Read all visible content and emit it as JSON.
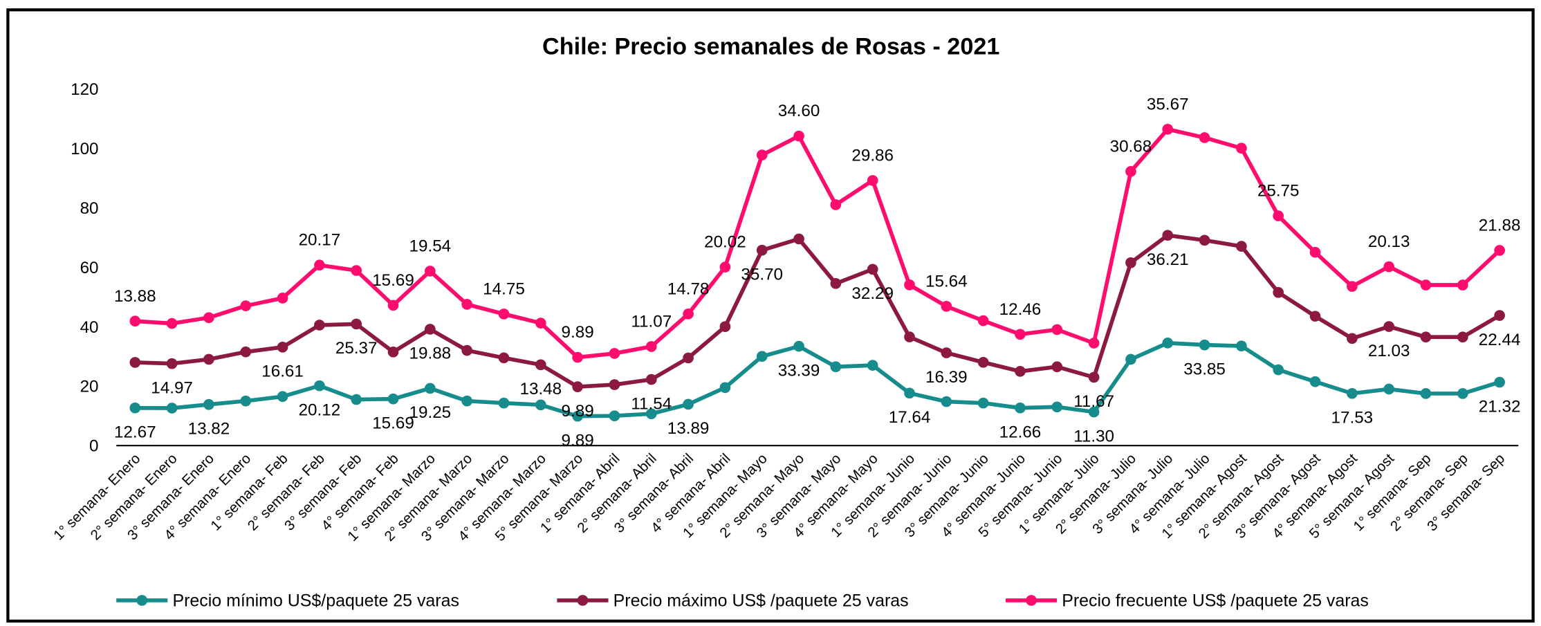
{
  "chart_data": {
    "type": "line",
    "stacked": true,
    "title": "Chile: Precio semanales de Rosas - 2021",
    "categories": [
      "1° semana- Enero",
      "2° semana- Enero",
      "3° semana- Enero",
      "4° semana- Enero",
      "1° semana- Feb",
      "2° semana- Feb",
      "3° semana- Feb",
      "4° semana- Feb",
      "1° semana- Marzo",
      "2° semana- Marzo",
      "3° semana- Marzo",
      "4° semana- Marzo",
      "5° semana- Marzo",
      "1° semana- Abril",
      "2° semana- Abril",
      "3° semana- Abril",
      "4° semana- Abril",
      "1° semana- Mayo",
      "2° semana- Mayo",
      "3° semana- Mayo",
      "4° semana- Mayo",
      "1° semana- Junio",
      "2° semana- Junio",
      "3° semana- Junio",
      "4° semana- Junio",
      "5° semana- Junio",
      "1° semana- Julio",
      "2° semana- Julio",
      "3° semana- Julio",
      "4° semana- Julio",
      "1° semana- Agost",
      "2° semana- Agost",
      "3° semana- Agost",
      "4° semana- Agost",
      "5° semana- Agost",
      "1° semana- Sep",
      "2° semana- Sep",
      "3° semana- Sep"
    ],
    "series": [
      {
        "name": "Precio mínimo US$/paquete 25 varas",
        "color": "#168c8c",
        "values": [
          12.67,
          12.6,
          13.82,
          15,
          16.5,
          20.12,
          15.5,
          15.69,
          19.25,
          15,
          14.3,
          13.7,
          9.89,
          10,
          10.7,
          13.89,
          19.5,
          30,
          33.39,
          26.5,
          27,
          17.64,
          14.8,
          14.3,
          12.66,
          13,
          11.3,
          29,
          34.5,
          33.85,
          33.5,
          25.5,
          21.5,
          17.53,
          19,
          17.5,
          17.5,
          21.32
        ],
        "value_labels": [
          "12.67",
          null,
          "13.82",
          null,
          null,
          "20.12",
          null,
          "15.69",
          "19.25",
          null,
          null,
          null,
          "9.89",
          null,
          null,
          "13.89",
          null,
          null,
          "33.39",
          null,
          null,
          "17.64",
          null,
          null,
          "12.66",
          null,
          "11.30",
          null,
          null,
          "33.85",
          null,
          null,
          null,
          "17.53",
          null,
          null,
          null,
          "21.32"
        ]
      },
      {
        "name": "Precio máximo US$ /paquete 25 varas",
        "color": "#8c1a40",
        "values": [
          15.3,
          14.97,
          15.2,
          16.5,
          16.61,
          20.4,
          25.37,
          15.8,
          19.88,
          17,
          15.2,
          13.48,
          9.89,
          10.5,
          11.54,
          15.6,
          20.5,
          35.7,
          36.1,
          28,
          32.29,
          18.9,
          16.39,
          13.7,
          12.3,
          13.5,
          11.67,
          32.5,
          36.21,
          35.2,
          33.5,
          26,
          22,
          18.5,
          21.03,
          19,
          19,
          22.44
        ],
        "value_labels": [
          null,
          "14.97",
          null,
          null,
          "16.61",
          null,
          "25.37",
          null,
          "19.88",
          null,
          null,
          "13.48",
          "9.89",
          null,
          "11.54",
          null,
          null,
          "35.70",
          null,
          null,
          "32.29",
          null,
          "16.39",
          null,
          null,
          null,
          "11.67",
          null,
          "36.21",
          null,
          null,
          null,
          null,
          null,
          "21.03",
          null,
          null,
          "22.44"
        ]
      },
      {
        "name": "Precio frecuente US$ /paquete 25 varas",
        "color": "#ff0d6e",
        "values": [
          13.88,
          13.5,
          14,
          15.5,
          16.5,
          20.17,
          18,
          15.69,
          19.54,
          15.5,
          14.75,
          14,
          9.89,
          10.5,
          11.07,
          14.78,
          20.02,
          32,
          34.6,
          26.5,
          29.86,
          17.5,
          15.64,
          14,
          12.46,
          12.5,
          11.5,
          30.68,
          35.67,
          34.5,
          33,
          25.75,
          21.5,
          17.5,
          20.13,
          17.5,
          17.5,
          21.88
        ],
        "value_labels": [
          "13.88",
          null,
          null,
          null,
          null,
          "20.17",
          null,
          "15.69",
          "19.54",
          null,
          "14.75",
          null,
          "9.89",
          null,
          "11.07",
          "14.78",
          "20.02",
          null,
          "34.60",
          null,
          "29.86",
          null,
          "15.64",
          null,
          "12.46",
          null,
          null,
          "30.68",
          "35.67",
          null,
          null,
          "25.75",
          null,
          null,
          "20.13",
          null,
          null,
          "21.88"
        ]
      }
    ],
    "ylim": [
      0,
      120
    ],
    "yticks": [
      0,
      20,
      40,
      60,
      80,
      100,
      120
    ],
    "grid": false,
    "legend": "bottom"
  }
}
